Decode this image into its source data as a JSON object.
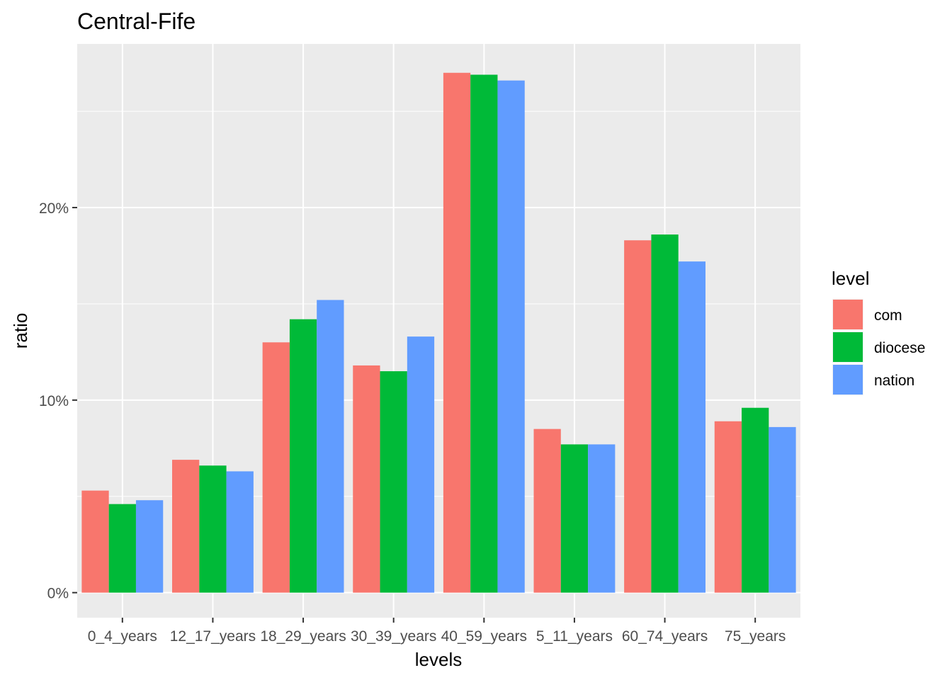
{
  "chart_data": {
    "type": "bar",
    "title": "Central-Fife",
    "xlabel": "levels",
    "ylabel": "ratio",
    "categories": [
      "0_4_years",
      "12_17_years",
      "18_29_years",
      "30_39_years",
      "40_59_years",
      "5_11_years",
      "60_74_years",
      "75_years"
    ],
    "series": [
      {
        "name": "com",
        "color": "#F8766D",
        "values": [
          5.3,
          6.9,
          13.0,
          11.8,
          27.0,
          8.5,
          18.3,
          8.9
        ]
      },
      {
        "name": "diocese",
        "color": "#00BA38",
        "values": [
          4.6,
          6.6,
          14.2,
          11.5,
          26.9,
          7.7,
          18.6,
          9.6
        ]
      },
      {
        "name": "nation",
        "color": "#619CFF",
        "values": [
          4.8,
          6.3,
          15.2,
          13.3,
          26.6,
          7.7,
          17.2,
          8.6
        ]
      }
    ],
    "ylim": [
      -1.3,
      28.5
    ],
    "y_ticks": [
      0,
      10,
      20
    ],
    "y_tick_labels": [
      "0%",
      "10%",
      "20%"
    ],
    "legend": {
      "title": "level",
      "placement": "right"
    },
    "grid": true,
    "panel_background": "#EBEBEB"
  }
}
